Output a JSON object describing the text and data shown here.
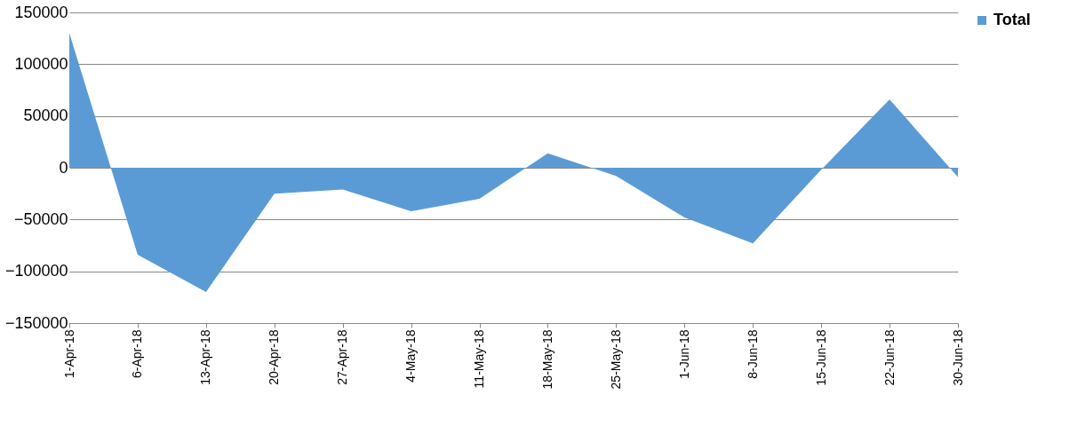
{
  "chart_data": {
    "type": "area",
    "categories": [
      "1-Apr-18",
      "6-Apr-18",
      "13-Apr-18",
      "20-Apr-18",
      "27-Apr-18",
      "4-May-18",
      "11-May-18",
      "18-May-18",
      "25-May-18",
      "1-Jun-18",
      "8-Jun-18",
      "15-Jun-18",
      "22-Jun-18",
      "30-Jun-18"
    ],
    "series": [
      {
        "name": "Total",
        "color": "#5b9bd5",
        "values": [
          130000,
          -84000,
          -120000,
          -25000,
          -21000,
          -42000,
          -30000,
          14000,
          -8000,
          -48000,
          -73000,
          -2000,
          66000,
          -9000
        ]
      }
    ],
    "ylim": [
      -150000,
      150000
    ],
    "yticks": [
      -150000,
      -100000,
      -50000,
      0,
      50000,
      100000,
      150000
    ],
    "grid": "y",
    "legend": "right"
  }
}
